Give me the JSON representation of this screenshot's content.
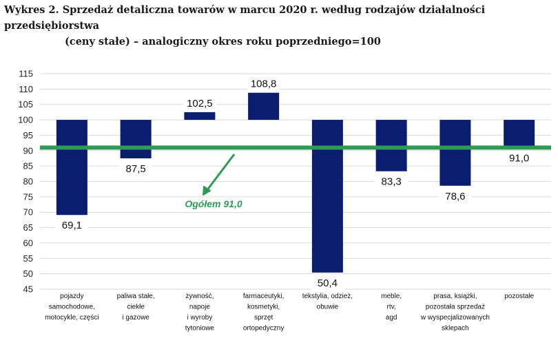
{
  "title_line1": "Wykres 2. Sprzedaż detaliczna towarów w marcu 2020 r. według rodzajów działalności przedsiębiorstwa",
  "title_line2": "(ceny stałe) – analogiczny okres roku poprzedniego=100",
  "colors": {
    "bar": "#0b1d6e",
    "reference": "#2e9a55",
    "grid": "#d9d9d9"
  },
  "chart_data": {
    "type": "bar",
    "title": "Wykres 2. Sprzedaż detaliczna towarów w marcu 2020 r. według rodzajów działalności przedsiębiorstwa (ceny stałe) – analogiczny okres roku poprzedniego=100",
    "baseline": 100,
    "ylim": [
      45,
      115
    ],
    "yticks": [
      45,
      50,
      55,
      60,
      65,
      70,
      75,
      80,
      85,
      90,
      95,
      100,
      105,
      110,
      115
    ],
    "grid": true,
    "categories": [
      [
        "pojazdy",
        "samochodowe,",
        "motocykle, części"
      ],
      [
        "paliwa stałe,",
        "ciekłe",
        "i gazowe"
      ],
      [
        "żywność,",
        "napoje",
        "i wyroby",
        "tytoniowe"
      ],
      [
        "farmaceutyki,",
        "kosmetyki,",
        "sprzęt",
        "ortopedyczny"
      ],
      [
        "tekstylia, odzież,",
        "obuwie"
      ],
      [
        "meble,",
        "rtv,",
        "agd"
      ],
      [
        "prasa, książki,",
        "pozostała sprzedaż",
        "w wyspecjalizowanych",
        "sklepach"
      ],
      [
        "pozostałe"
      ]
    ],
    "values": [
      69.1,
      87.5,
      102.5,
      108.8,
      50.4,
      83.3,
      78.6,
      91.0
    ],
    "value_labels": [
      "69,1",
      "87,5",
      "102,5",
      "108,8",
      "50,4",
      "83,3",
      "78,6",
      "91,0"
    ],
    "reference_line": {
      "value": 91.0,
      "label": "Ogółem 91,0"
    }
  }
}
